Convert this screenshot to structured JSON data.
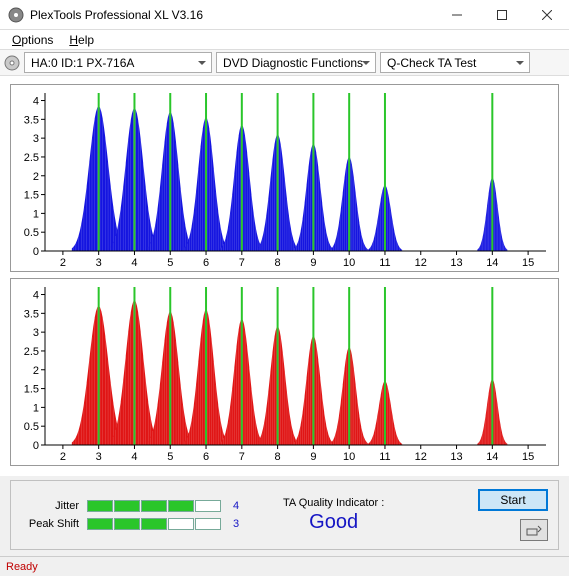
{
  "window": {
    "title": "PlexTools Professional XL V3.16"
  },
  "menu": {
    "options": "Options",
    "help": "Help"
  },
  "toolbar": {
    "drive": "HA:0 ID:1   PX-716A",
    "mode": "DVD Diagnostic Functions",
    "test": "Q-Check TA Test"
  },
  "chart_top": {
    "type": "histogram-peaks",
    "color": "#1515e0",
    "vline_color": "#2ac62a",
    "axis_color": "#000",
    "grid_color": "#ddd",
    "background": "#ffffff",
    "xlim": [
      1.5,
      15.5
    ],
    "ylim": [
      0,
      4.2
    ],
    "xticks": [
      2,
      3,
      4,
      5,
      6,
      7,
      8,
      9,
      10,
      11,
      12,
      13,
      14,
      15
    ],
    "yticks": [
      0,
      0.5,
      1,
      1.5,
      2,
      2.5,
      3,
      3.5,
      4
    ],
    "vlines": [
      3,
      4,
      5,
      6,
      7,
      8,
      9,
      10,
      11,
      14
    ],
    "peaks": [
      {
        "c": 3,
        "h": 3.85,
        "w": 0.75
      },
      {
        "c": 4,
        "h": 3.8,
        "w": 0.7
      },
      {
        "c": 5,
        "h": 3.7,
        "w": 0.65
      },
      {
        "c": 6,
        "h": 3.55,
        "w": 0.62
      },
      {
        "c": 7,
        "h": 3.35,
        "w": 0.6
      },
      {
        "c": 8,
        "h": 3.1,
        "w": 0.58
      },
      {
        "c": 9,
        "h": 2.85,
        "w": 0.55
      },
      {
        "c": 10,
        "h": 2.5,
        "w": 0.52
      },
      {
        "c": 11,
        "h": 1.75,
        "w": 0.48
      },
      {
        "c": 14,
        "h": 1.95,
        "w": 0.42
      }
    ]
  },
  "chart_bottom": {
    "type": "histogram-peaks",
    "color": "#e01515",
    "vline_color": "#2ac62a",
    "axis_color": "#000",
    "grid_color": "#ddd",
    "background": "#ffffff",
    "xlim": [
      1.5,
      15.5
    ],
    "ylim": [
      0,
      4.2
    ],
    "xticks": [
      2,
      3,
      4,
      5,
      6,
      7,
      8,
      9,
      10,
      11,
      12,
      13,
      14,
      15
    ],
    "yticks": [
      0,
      0.5,
      1,
      1.5,
      2,
      2.5,
      3,
      3.5,
      4
    ],
    "vlines": [
      3,
      4,
      5,
      6,
      7,
      8,
      9,
      10,
      11,
      14
    ],
    "peaks": [
      {
        "c": 3,
        "h": 3.7,
        "w": 0.75
      },
      {
        "c": 4,
        "h": 3.85,
        "w": 0.7
      },
      {
        "c": 5,
        "h": 3.55,
        "w": 0.65
      },
      {
        "c": 6,
        "h": 3.6,
        "w": 0.62
      },
      {
        "c": 7,
        "h": 3.35,
        "w": 0.6
      },
      {
        "c": 8,
        "h": 3.15,
        "w": 0.58
      },
      {
        "c": 9,
        "h": 2.9,
        "w": 0.55
      },
      {
        "c": 10,
        "h": 2.6,
        "w": 0.52
      },
      {
        "c": 11,
        "h": 1.7,
        "w": 0.48
      },
      {
        "c": 14,
        "h": 1.75,
        "w": 0.42
      }
    ]
  },
  "metrics": {
    "jitter_label": "Jitter",
    "jitter_filled": 4,
    "jitter_total": 5,
    "jitter_value": "4",
    "peakshift_label": "Peak Shift",
    "peakshift_filled": 3,
    "peakshift_total": 5,
    "peakshift_value": "3",
    "bar_fill_color": "#2ac62a"
  },
  "quality": {
    "label": "TA Quality Indicator :",
    "value": "Good"
  },
  "buttons": {
    "start": "Start"
  },
  "status": {
    "text": "Ready"
  }
}
